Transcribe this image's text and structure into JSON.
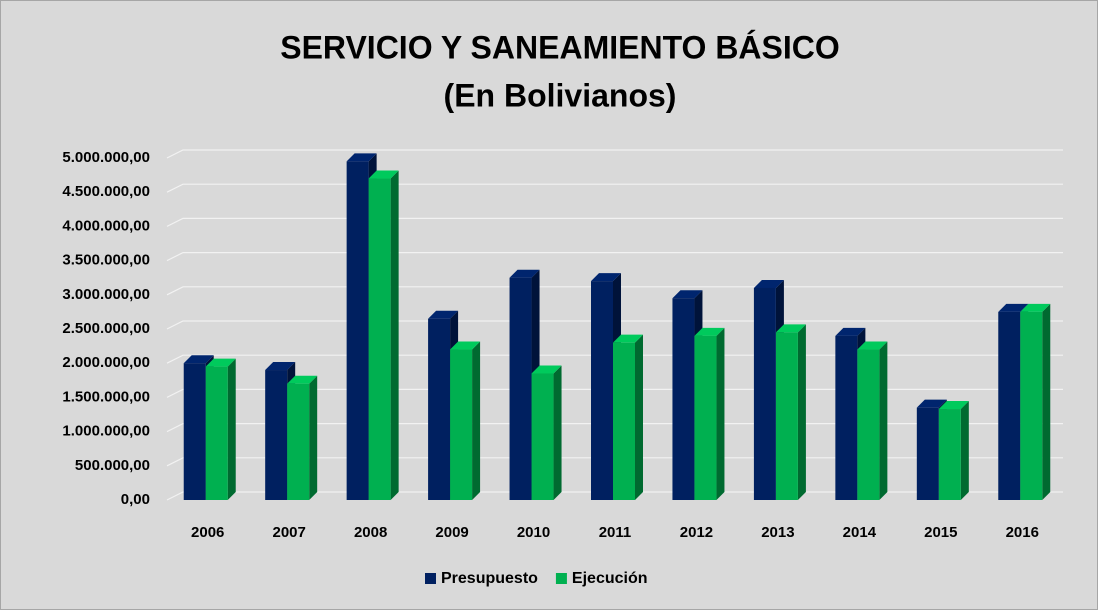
{
  "chart_data": {
    "type": "bar3d",
    "title": "SERVICIO Y SANEAMIENTO BÁSICO",
    "subtitle": "(En Bolivianos)",
    "categories": [
      "2006",
      "2007",
      "2008",
      "2009",
      "2010",
      "2011",
      "2012",
      "2013",
      "2014",
      "2015",
      "2016"
    ],
    "series": [
      {
        "name": "Presupuesto",
        "color": "#002060",
        "values": [
          2000000,
          1900000,
          4950000,
          2650000,
          3250000,
          3200000,
          2950000,
          3100000,
          2400000,
          1350000,
          2750000
        ]
      },
      {
        "name": "Ejecución",
        "color": "#00b050",
        "values": [
          1950000,
          1700000,
          4700000,
          2200000,
          1850000,
          2300000,
          2400000,
          2450000,
          2200000,
          1330000,
          2750000
        ]
      }
    ],
    "ylim": [
      0,
      5000000
    ],
    "yticks": [
      {
        "value": 0,
        "label": "0,00"
      },
      {
        "value": 500000,
        "label": "500.000,00"
      },
      {
        "value": 1000000,
        "label": "1.000.000,00"
      },
      {
        "value": 1500000,
        "label": "1.500.000,00"
      },
      {
        "value": 2000000,
        "label": "2.000.000,00"
      },
      {
        "value": 2500000,
        "label": "2.500.000,00"
      },
      {
        "value": 3000000,
        "label": "3.000.000,00"
      },
      {
        "value": 3500000,
        "label": "3.500.000,00"
      },
      {
        "value": 4000000,
        "label": "4.000.000,00"
      },
      {
        "value": 4500000,
        "label": "4.500.000,00"
      },
      {
        "value": 5000000,
        "label": "5.000.000,00"
      }
    ],
    "grid": true,
    "legend": "bottom"
  }
}
